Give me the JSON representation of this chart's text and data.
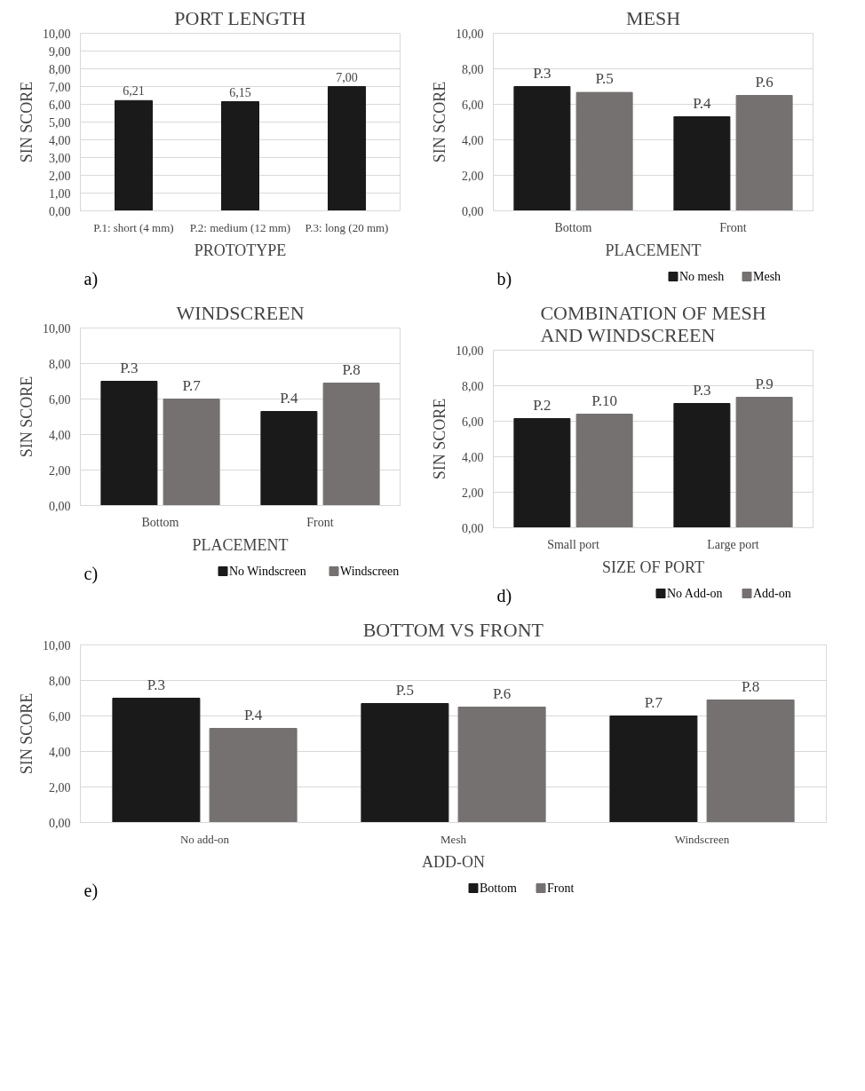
{
  "chart_data": [
    {
      "type": "bar",
      "title": "PORT LENGTH",
      "xlabel": "PROTOTYPE",
      "ylabel": "SIN SCORE",
      "annotations": [
        "a)"
      ],
      "categories": [
        "P.1: short (4 mm)",
        "P.2: medium (12 mm)",
        "P.3: long (20 mm)"
      ],
      "values": [
        6.21,
        6.15,
        7.0
      ],
      "value_labels": [
        "6,21",
        "6,15",
        "7,00"
      ],
      "color": "#1a1a1a",
      "ylim": [
        0,
        10
      ],
      "yticks": [
        {
          "value": 0,
          "label": "0,00"
        },
        {
          "value": 1,
          "label": "1,00"
        },
        {
          "value": 2,
          "label": "2,00"
        },
        {
          "value": 3,
          "label": "3,00"
        },
        {
          "value": 4,
          "label": "4,00"
        },
        {
          "value": 5,
          "label": "5,00"
        },
        {
          "value": 6,
          "label": "6,00"
        },
        {
          "value": 7,
          "label": "7,00"
        },
        {
          "value": 8,
          "label": "8,00"
        },
        {
          "value": 9,
          "label": "9,00"
        },
        {
          "value": 10,
          "label": "10,00"
        }
      ],
      "grid": "y"
    },
    {
      "type": "bar",
      "title": "MESH",
      "xlabel": "PLACEMENT",
      "ylabel": "SIN SCORE",
      "annotations": [
        "b)"
      ],
      "categories": [
        "Bottom",
        "Front"
      ],
      "series": [
        {
          "name": "No mesh",
          "color": "#1a1a1a",
          "values": [
            7.0,
            5.3
          ],
          "value_labels": [
            "P.3",
            "P.4"
          ]
        },
        {
          "name": "Mesh",
          "color": "#767171",
          "values": [
            6.67,
            6.5
          ],
          "value_labels": [
            "P.5",
            "P.6"
          ]
        }
      ],
      "ylim": [
        0,
        10
      ],
      "yticks": [
        {
          "value": 0,
          "label": "0,00"
        },
        {
          "value": 2,
          "label": "2,00"
        },
        {
          "value": 4,
          "label": "4,00"
        },
        {
          "value": 6,
          "label": "6,00"
        },
        {
          "value": 8,
          "label": "8,00"
        },
        {
          "value": 10,
          "label": "10,00"
        }
      ],
      "grid": "y",
      "legend": "bottom"
    },
    {
      "type": "bar",
      "title": "WINDSCREEN",
      "xlabel": "PLACEMENT",
      "ylabel": "SIN SCORE",
      "annotations": [
        "c)"
      ],
      "categories": [
        "Bottom",
        "Front"
      ],
      "series": [
        {
          "name": "No Windscreen",
          "color": "#1a1a1a",
          "values": [
            7.0,
            5.3
          ],
          "value_labels": [
            "P.3",
            "P.4"
          ]
        },
        {
          "name": "Windscreen",
          "color": "#767171",
          "values": [
            6.0,
            6.9
          ],
          "value_labels": [
            "P.7",
            "P.8"
          ]
        }
      ],
      "ylim": [
        0,
        10
      ],
      "yticks": [
        {
          "value": 0,
          "label": "0,00"
        },
        {
          "value": 2,
          "label": "2,00"
        },
        {
          "value": 4,
          "label": "4,00"
        },
        {
          "value": 6,
          "label": "6,00"
        },
        {
          "value": 8,
          "label": "8,00"
        },
        {
          "value": 10,
          "label": "10,00"
        }
      ],
      "grid": "y",
      "legend": "bottom"
    },
    {
      "type": "bar",
      "title": "COMBINATION OF MESH\nAND WINDSCREEN",
      "xlabel": "SIZE OF PORT",
      "ylabel": "SIN SCORE",
      "annotations": [
        "d)"
      ],
      "categories": [
        "Small port",
        "Large port"
      ],
      "series": [
        {
          "name": "No Add-on",
          "color": "#1a1a1a",
          "values": [
            6.15,
            7.0
          ],
          "value_labels": [
            "P.2",
            "P.3"
          ]
        },
        {
          "name": "Add-on",
          "color": "#767171",
          "values": [
            6.4,
            7.35
          ],
          "value_labels": [
            "P.10",
            "P.9"
          ]
        }
      ],
      "ylim": [
        0,
        10
      ],
      "yticks": [
        {
          "value": 0,
          "label": "0,00"
        },
        {
          "value": 2,
          "label": "2,00"
        },
        {
          "value": 4,
          "label": "4,00"
        },
        {
          "value": 6,
          "label": "6,00"
        },
        {
          "value": 8,
          "label": "8,00"
        },
        {
          "value": 10,
          "label": "10,00"
        }
      ],
      "grid": "y",
      "legend": "bottom"
    },
    {
      "type": "bar",
      "title": "BOTTOM VS FRONT",
      "xlabel": "ADD-ON",
      "ylabel": "SIN SCORE",
      "annotations": [
        "e)"
      ],
      "categories": [
        "No add-on",
        "Mesh",
        "Windscreen"
      ],
      "series": [
        {
          "name": "Bottom",
          "color": "#1a1a1a",
          "values": [
            7.0,
            6.7,
            6.0
          ],
          "value_labels": [
            "P.3",
            "P.5",
            "P.7"
          ]
        },
        {
          "name": "Front",
          "color": "#767171",
          "values": [
            5.3,
            6.5,
            6.9
          ],
          "value_labels": [
            "P.4",
            "P.6",
            "P.8"
          ]
        }
      ],
      "ylim": [
        0,
        10
      ],
      "yticks": [
        {
          "value": 0,
          "label": "0,00"
        },
        {
          "value": 2,
          "label": "2,00"
        },
        {
          "value": 4,
          "label": "4,00"
        },
        {
          "value": 6,
          "label": "6,00"
        },
        {
          "value": 8,
          "label": "8,00"
        },
        {
          "value": 10,
          "label": "10,00"
        }
      ],
      "grid": "y",
      "legend": "bottom"
    }
  ]
}
